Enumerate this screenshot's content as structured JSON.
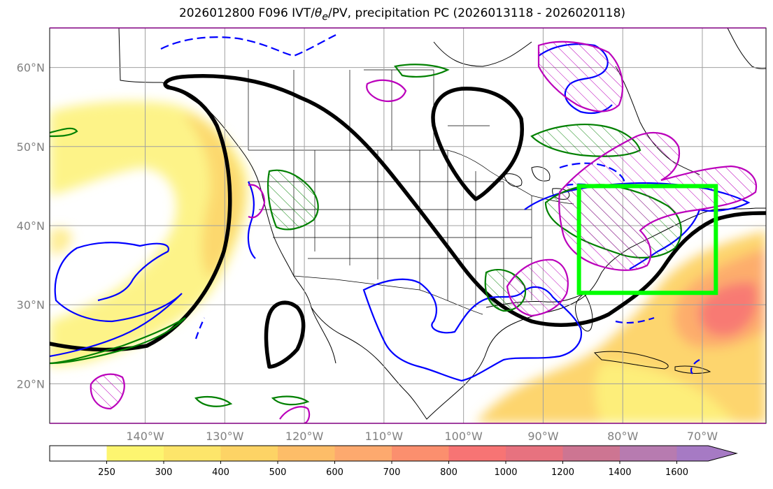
{
  "title": "2026012800 F096 IVT/θe/PV, precipitation PC (2026013118 - 2026020118)",
  "title_parts": {
    "prefix": "2026012800 F096 IVT/",
    "theta": "θ",
    "sub": "e",
    "suffix": "/PV, precipitation PC (2026013118 - 2026020118)"
  },
  "map": {
    "lon_range": [
      -152,
      -62
    ],
    "lat_range": [
      15,
      65
    ],
    "lat_ticks": [
      {
        "value": 20,
        "label": "20°N"
      },
      {
        "value": 30,
        "label": "30°N"
      },
      {
        "value": 40,
        "label": "40°N"
      },
      {
        "value": 50,
        "label": "50°N"
      },
      {
        "value": 60,
        "label": "60°N"
      }
    ],
    "lon_ticks": [
      {
        "value": -140,
        "label": "140°W"
      },
      {
        "value": -130,
        "label": "130°W"
      },
      {
        "value": -120,
        "label": "120°W"
      },
      {
        "value": -110,
        "label": "110°W"
      },
      {
        "value": -100,
        "label": "100°W"
      },
      {
        "value": -90,
        "label": "90°W"
      },
      {
        "value": -80,
        "label": "80°W"
      },
      {
        "value": -70,
        "label": "70°W"
      }
    ],
    "grid": true,
    "highlight_box": {
      "lon": [
        -85.5,
        -68.3
      ],
      "lat": [
        31.5,
        45
      ],
      "color": "#00ff00"
    },
    "colors": {
      "pv_contour": "#000000",
      "theta_contour": "#0000ff",
      "precip_green": "#008000",
      "precip_magenta": "#bb00bb",
      "coast": "#000000"
    }
  },
  "colorbar": {
    "levels": [
      250,
      300,
      400,
      500,
      600,
      700,
      800,
      1000,
      1200,
      1400,
      1600
    ],
    "colors": [
      "#ffffff",
      "#fdf570",
      "#fde56a",
      "#fdd365",
      "#fdbd68",
      "#fda96e",
      "#fb8f6e",
      "#f77474",
      "#e7727f",
      "#cd7592",
      "#b77bb0",
      "#a67ac4"
    ],
    "extend": "max"
  }
}
